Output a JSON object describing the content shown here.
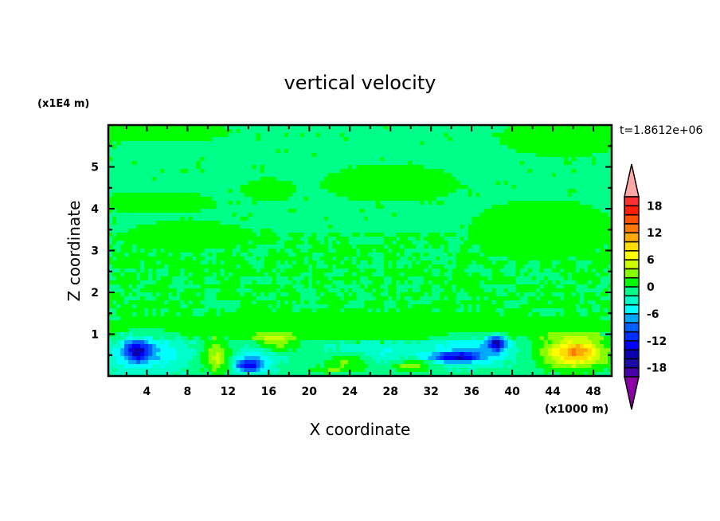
{
  "chart_data": {
    "type": "heatmap",
    "title": "vertical velocity",
    "time_label": "t=1.8612e+06",
    "xlabel": "X coordinate",
    "ylabel": "Z coordinate",
    "x_unit": "(x1000 m)",
    "y_unit": "(x1E4 m)",
    "xlim": [
      0.2,
      49.8
    ],
    "ylim": [
      0,
      6
    ],
    "x_ticks": [
      4,
      8,
      12,
      16,
      20,
      24,
      28,
      32,
      36,
      40,
      44,
      48
    ],
    "y_ticks": [
      1,
      2,
      3,
      4,
      5
    ],
    "colorbar": {
      "levels": [
        -20,
        -18,
        -16,
        -14,
        -12,
        -10,
        -8,
        -6,
        -4,
        -2,
        0,
        2,
        4,
        6,
        8,
        10,
        12,
        14,
        16,
        18,
        20
      ],
      "labels": [
        "18",
        "12",
        "6",
        "0",
        "-6",
        "-12",
        "-18"
      ],
      "label_values": [
        18,
        12,
        6,
        0,
        -6,
        -12,
        -18
      ],
      "colors": [
        "#4a00a8",
        "#1c0ca8",
        "#0a00b0",
        "#0000ff",
        "#0030ff",
        "#0060ff",
        "#00a8ff",
        "#00ffff",
        "#00ffc8",
        "#00ff88",
        "#00ff00",
        "#88ff00",
        "#ccff00",
        "#ffff00",
        "#ffdc00",
        "#ffaa00",
        "#ff7800",
        "#ff5000",
        "#ff2000",
        "#ff3030"
      ],
      "over_color": "#ffa8a8",
      "under_color": "#8c00a8"
    },
    "features": [
      {
        "x": 46,
        "z": 0.55,
        "value": 10,
        "rx": 3.2,
        "rz": 0.35
      },
      {
        "x": 46.5,
        "z": 0.6,
        "value": 4,
        "rx": 1.5,
        "rz": 0.2
      },
      {
        "x": 38.5,
        "z": 0.78,
        "value": -12,
        "rx": 0.9,
        "rz": 0.18
      },
      {
        "x": 34.5,
        "z": 0.45,
        "value": -10,
        "rx": 2.4,
        "rz": 0.12
      },
      {
        "x": 36,
        "z": 0.6,
        "value": -5,
        "rx": 4,
        "rz": 0.35
      },
      {
        "x": 3,
        "z": 0.6,
        "value": -10,
        "rx": 1.2,
        "rz": 0.25
      },
      {
        "x": 4,
        "z": 0.55,
        "value": -5,
        "rx": 4,
        "rz": 0.45
      },
      {
        "x": 14,
        "z": 0.25,
        "value": -9,
        "rx": 1.4,
        "rz": 0.15
      },
      {
        "x": 14.5,
        "z": 0.4,
        "value": -4,
        "rx": 2.4,
        "rz": 0.35
      },
      {
        "x": 11,
        "z": 0.45,
        "value": 6,
        "rx": 1.4,
        "rz": 0.4
      },
      {
        "x": 16.5,
        "z": 0.8,
        "value": 5,
        "rx": 2,
        "rz": 0.22
      },
      {
        "x": 24,
        "z": 0.35,
        "value": 4.5,
        "rx": 2.2,
        "rz": 0.2
      },
      {
        "x": 30,
        "z": 0.25,
        "value": 5,
        "rx": 2,
        "rz": 0.14
      },
      {
        "x": 22,
        "z": 0.15,
        "value": 3,
        "rx": 2,
        "rz": 0.08
      },
      {
        "x": 26.5,
        "z": 0.55,
        "value": -3,
        "rx": 5,
        "rz": 0.3
      }
    ],
    "positive_regions": [
      {
        "x": 5,
        "z": 5.85,
        "rx": 8,
        "rz": 0.3
      },
      {
        "x": 45,
        "z": 5.7,
        "rx": 7,
        "rz": 0.5
      },
      {
        "x": 5,
        "z": 4.15,
        "rx": 6.5,
        "rz": 0.3
      },
      {
        "x": 28,
        "z": 4.6,
        "rx": 7.5,
        "rz": 0.5
      },
      {
        "x": 16,
        "z": 4.45,
        "rx": 3,
        "rz": 0.3
      },
      {
        "x": 43,
        "z": 3.5,
        "rx": 8,
        "rz": 0.8
      },
      {
        "x": 8,
        "z": 3.35,
        "rx": 7,
        "rz": 0.4
      },
      {
        "x": 25,
        "z": 1.2,
        "rx": 30,
        "rz": 0.35
      }
    ]
  }
}
